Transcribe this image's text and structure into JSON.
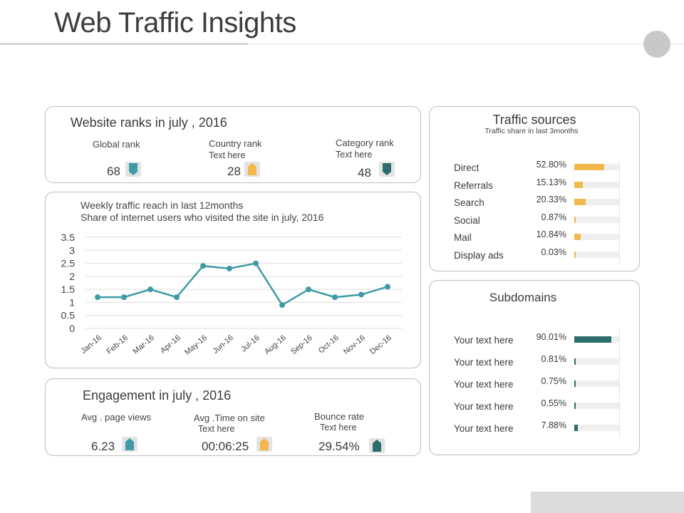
{
  "page": {
    "title": "Web Traffic Insights"
  },
  "colors": {
    "teal": "#3f9ba6",
    "dark_teal": "#2e6d6d",
    "orange": "#f2b84b",
    "grid": "#dedede"
  },
  "ranks": {
    "title": "Website ranks in july , 2016",
    "items": [
      {
        "label": "Global rank",
        "sub": "",
        "value": "68",
        "icon": "arrow-down-icon"
      },
      {
        "label": "Country rank",
        "sub": "Text here",
        "value": "28",
        "icon": "arrow-up-icon"
      },
      {
        "label": "Category rank",
        "sub": "Text here",
        "value": "48",
        "icon": "arrow-down-icon"
      }
    ]
  },
  "chart_data": {
    "type": "line",
    "title": "Weekly traffic reach in last 12months",
    "subtitle": "Share of internet users who visited the site in july, 2016",
    "categories": [
      "Jan-16",
      "Feb-16",
      "Mar-16",
      "Apr-16",
      "May-16",
      "Jun-16",
      "Jul-16",
      "Aug-16",
      "Sep-16",
      "Oct-16",
      "Nov-16",
      "Dec-16"
    ],
    "values": [
      1.2,
      1.2,
      1.5,
      1.2,
      2.4,
      2.3,
      2.5,
      0.9,
      1.5,
      1.2,
      1.3,
      1.6
    ],
    "yticks": [
      "0",
      "0.5",
      "1",
      "1.5",
      "2",
      "2.5",
      "3",
      "3.5"
    ],
    "ylim": [
      0,
      3.5
    ],
    "xlabel": "",
    "ylabel": ""
  },
  "engagement": {
    "title": "Engagement in july , 2016",
    "items": [
      {
        "label": "Avg . page views",
        "sub": "",
        "value": "6.23",
        "icon": "arrow-up-icon"
      },
      {
        "label": "Avg .Time on site",
        "sub": "Text here",
        "value": "00:06:25",
        "icon": "arrow-up-icon"
      },
      {
        "label": "Bounce rate",
        "sub": "Text here",
        "value": "29.54%",
        "icon": "arrow-up-icon"
      }
    ]
  },
  "traffic": {
    "title": "Traffic sources",
    "subtitle": "Traffic share in last 3months",
    "rows": [
      {
        "label": "Direct",
        "pct": "52.80%",
        "share": 0.528
      },
      {
        "label": "Referrals",
        "pct": "15.13%",
        "share": 0.1513
      },
      {
        "label": "Search",
        "pct": "20.33%",
        "share": 0.2033
      },
      {
        "label": "Social",
        "pct": "0.87%",
        "share": 0.0087
      },
      {
        "label": "Mail",
        "pct": "10.84%",
        "share": 0.1084
      },
      {
        "label": "Display ads",
        "pct": "0.03%",
        "share": 0.0003
      }
    ]
  },
  "subdomains": {
    "title": "Subdomains",
    "rows": [
      {
        "label": "Your text here",
        "pct": "90.01%",
        "share": 0.9001
      },
      {
        "label": "Your text here",
        "pct": "0.81%",
        "share": 0.0081
      },
      {
        "label": "Your text here",
        "pct": "0.75%",
        "share": 0.0075
      },
      {
        "label": "Your text here",
        "pct": "0.55%",
        "share": 0.0055
      },
      {
        "label": "Your text here",
        "pct": "7.88%",
        "share": 0.0788
      }
    ]
  }
}
